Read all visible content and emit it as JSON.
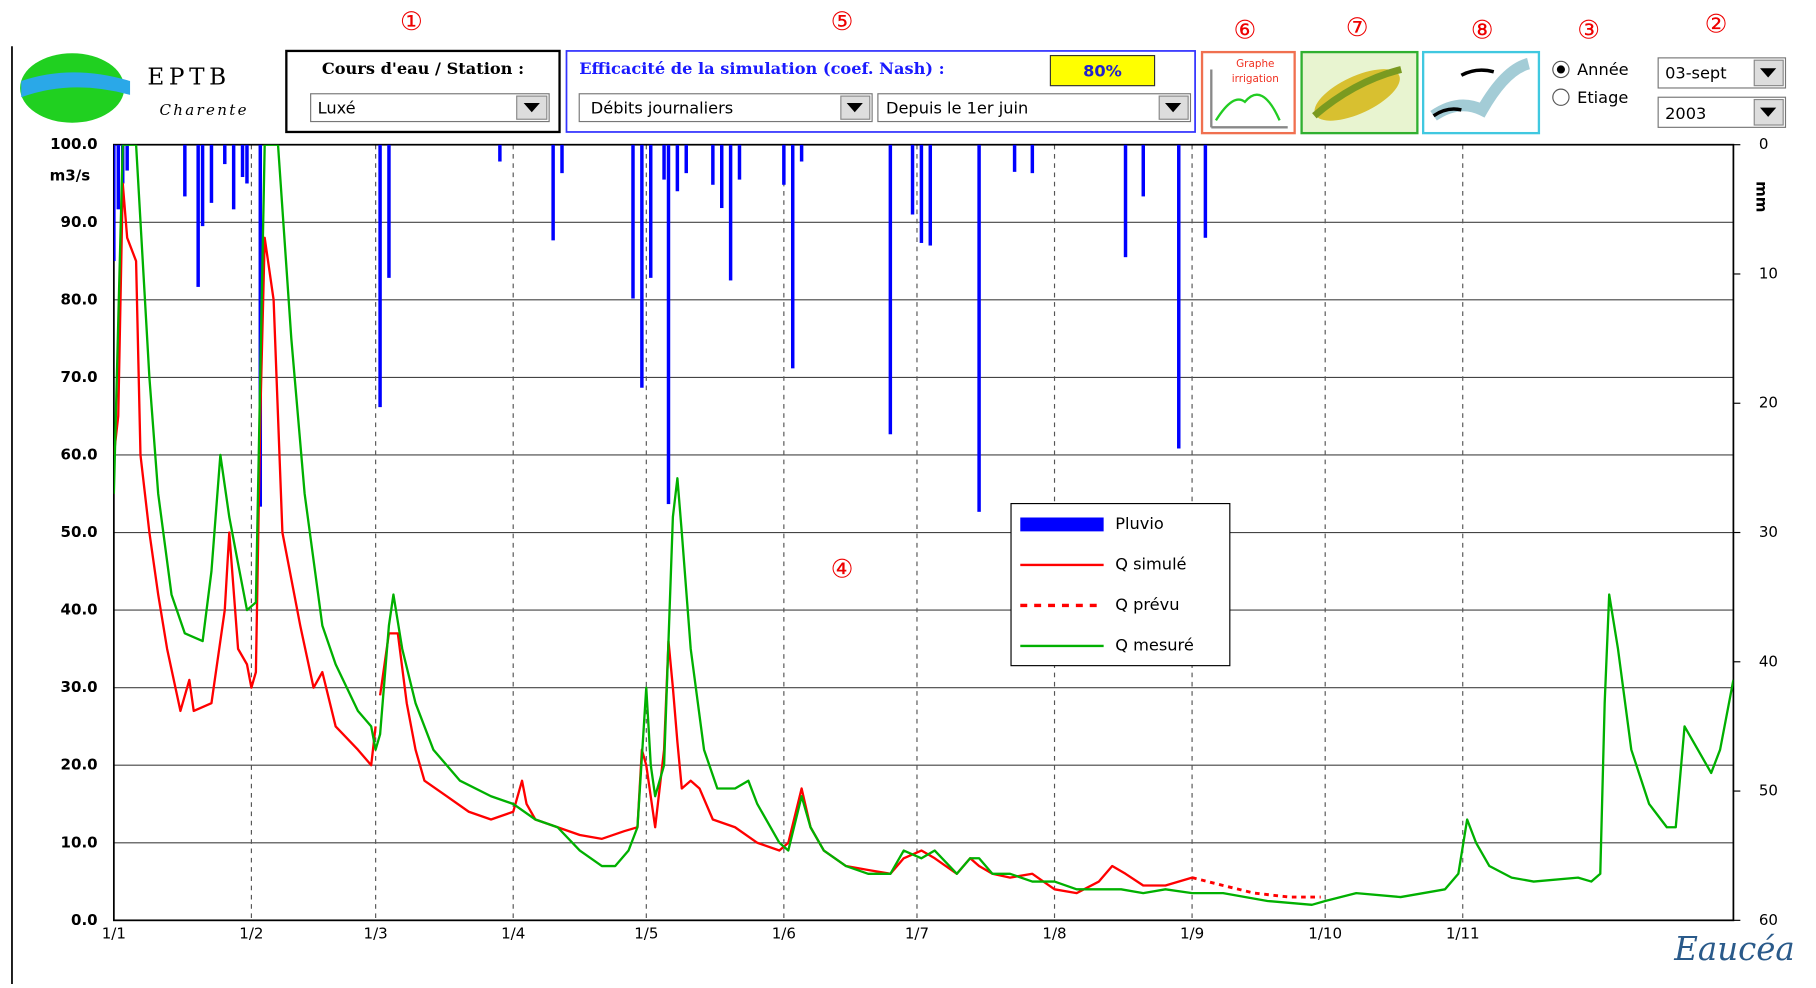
{
  "ui": {
    "logo": {
      "title": "EPTB",
      "subtitle": "Charente"
    },
    "station_label": "Cours d'eau / Station :",
    "station": "Luxé",
    "nash_label": "Efficacité de la simulation (coef. Nash) :",
    "nash": "80%",
    "step": "Débits journaliers",
    "period": "Depuis le 1er juin",
    "irrigation_button": "Graphe irrigation",
    "mode_year": "Année",
    "mode_low": "Etiage",
    "date": "03-sept",
    "year": "2003",
    "brand": "Eaucéa"
  },
  "annotations": [
    {
      "text": "①"
    },
    {
      "text": "⑤"
    },
    {
      "text": "⑥"
    },
    {
      "text": "⑦"
    },
    {
      "text": "⑧"
    },
    {
      "text": "③"
    },
    {
      "text": "②"
    },
    {
      "text": "④"
    }
  ],
  "chart_data": {
    "type": "line",
    "y_label": "m3/s",
    "y2_label": "mm",
    "xlim": [
      0,
      365
    ],
    "xticks": [
      {
        "value": 0,
        "label": "1/1"
      },
      {
        "value": 31,
        "label": "1/2"
      },
      {
        "value": 59,
        "label": "1/3"
      },
      {
        "value": 90,
        "label": "1/4"
      },
      {
        "value": 120,
        "label": "1/5"
      },
      {
        "value": 151,
        "label": "1/6"
      },
      {
        "value": 181,
        "label": "1/7"
      },
      {
        "value": 212,
        "label": "1/8"
      },
      {
        "value": 243,
        "label": "1/9"
      },
      {
        "value": 273,
        "label": "1/10"
      },
      {
        "value": 304,
        "label": "1/11"
      }
    ],
    "ylim": [
      0,
      100
    ],
    "yticks": [
      {
        "value": 0,
        "label": "0.0"
      },
      {
        "value": 10,
        "label": "10.0"
      },
      {
        "value": 20,
        "label": "20.0"
      },
      {
        "value": 30,
        "label": "30.0"
      },
      {
        "value": 40,
        "label": "40.0"
      },
      {
        "value": 50,
        "label": "50.0"
      },
      {
        "value": 60,
        "label": "60.0"
      },
      {
        "value": 70,
        "label": "70.0"
      },
      {
        "value": 80,
        "label": "80.0"
      },
      {
        "value": 90,
        "label": "90.0"
      },
      {
        "value": 100,
        "label": "100.0"
      }
    ],
    "y2lim": [
      60,
      0
    ],
    "y2ticks": [
      0,
      10,
      20,
      30,
      40,
      50,
      60
    ],
    "grid": true,
    "series": [
      {
        "name": "Pluvio",
        "color": "#0000ff",
        "style": "bar",
        "axis": "y2",
        "x": [
          0,
          1,
          2,
          3,
          16,
          19,
          20,
          22,
          25,
          27,
          29,
          30,
          33,
          60,
          62,
          87,
          99,
          101,
          117,
          119,
          121,
          124,
          125,
          127,
          129,
          135,
          137,
          139,
          141,
          151,
          153,
          155,
          175,
          180,
          182,
          184,
          195,
          203,
          207,
          228,
          232,
          240,
          246
        ],
        "values": [
          9,
          5,
          3,
          2,
          4,
          11,
          6.3,
          4.5,
          1.5,
          5,
          2.5,
          3,
          28,
          20.3,
          10.3,
          1.3,
          7.4,
          2.2,
          11.9,
          18.8,
          10.3,
          2.7,
          27.8,
          3.6,
          2.2,
          3.1,
          4.9,
          10.5,
          2.7,
          3.1,
          17.3,
          1.3,
          22.4,
          5.4,
          7.6,
          7.8,
          28.4,
          2.1,
          2.2,
          8.7,
          4,
          23.5,
          7.2
        ]
      },
      {
        "name": "Q simulé",
        "color": "#ff0000",
        "style": "line",
        "x": [
          0,
          1,
          2,
          3,
          5,
          6,
          8,
          10,
          12,
          15,
          17,
          18,
          22,
          25,
          26,
          28,
          30,
          31,
          32,
          33,
          34,
          36,
          38,
          42,
          45,
          47,
          50,
          55,
          58,
          59,
          null,
          60,
          62,
          64,
          66,
          68,
          70,
          75,
          80,
          85,
          90,
          92,
          93,
          95,
          100,
          105,
          110,
          115,
          118,
          119,
          120,
          122,
          124,
          125,
          126,
          127,
          128,
          130,
          132,
          135,
          140,
          145,
          150,
          152,
          155,
          157,
          160,
          165,
          170,
          175,
          178,
          182,
          185,
          190,
          193,
          195,
          198,
          202,
          207,
          212,
          217,
          222,
          225,
          228,
          232,
          237,
          243
        ],
        "values": [
          60,
          65,
          95,
          88,
          85,
          60,
          50,
          42,
          35,
          27,
          31,
          27,
          28,
          40,
          50,
          35,
          33,
          30,
          32,
          65,
          88,
          80,
          50,
          38,
          30,
          32,
          25,
          22,
          20,
          25,
          null,
          29,
          37,
          37,
          28,
          22,
          18,
          16,
          14,
          13,
          14,
          18,
          15,
          13,
          12,
          11,
          10.5,
          11.5,
          12,
          22,
          20,
          12,
          22,
          36,
          30,
          23,
          17,
          18,
          17,
          13,
          12,
          10,
          9,
          10,
          17,
          12,
          9,
          7,
          6.5,
          6,
          8,
          9,
          8,
          6,
          8,
          7,
          6,
          5.5,
          6,
          4,
          3.5,
          5,
          7,
          6,
          4.5,
          4.5,
          5.5
        ]
      },
      {
        "name": "Q prévu",
        "color": "#ff0000",
        "style": "dashed",
        "x": [
          243,
          250,
          257,
          265,
          272
        ],
        "values": [
          5.5,
          4.5,
          3.5,
          3,
          3
        ]
      },
      {
        "name": "Q mesuré",
        "color": "#00b000",
        "style": "line",
        "x": [
          0,
          2,
          5,
          8,
          10,
          13,
          16,
          20,
          22,
          24,
          26,
          28,
          30,
          32,
          34,
          37,
          40,
          43,
          47,
          50,
          55,
          58,
          59,
          60,
          62,
          63,
          65,
          68,
          72,
          78,
          85,
          90,
          95,
          100,
          105,
          110,
          113,
          116,
          118,
          120,
          121,
          122,
          124,
          126,
          127,
          128,
          130,
          133,
          136,
          140,
          143,
          145,
          150,
          152,
          155,
          157,
          160,
          165,
          170,
          175,
          178,
          182,
          185,
          190,
          193,
          195,
          198,
          202,
          207,
          212,
          217,
          222,
          227,
          232,
          237,
          243,
          250,
          260,
          270,
          273,
          280,
          290,
          300,
          303,
          305,
          307,
          310,
          315,
          320,
          330,
          333,
          335,
          336,
          337,
          339,
          342,
          346,
          350,
          352,
          354,
          357,
          360,
          362,
          365
        ],
        "values": [
          55,
          100,
          100,
          70,
          55,
          42,
          37,
          36,
          45,
          60,
          52,
          46,
          40,
          41,
          100,
          100,
          75,
          55,
          38,
          33,
          27,
          25,
          22,
          24,
          38,
          42,
          35,
          28,
          22,
          18,
          16,
          15,
          13,
          12,
          9,
          7,
          7,
          9,
          12,
          30,
          20,
          16,
          20,
          52,
          57,
          50,
          35,
          22,
          17,
          17,
          18,
          15,
          10,
          9,
          16,
          12,
          9,
          7,
          6,
          6,
          9,
          8,
          9,
          6,
          8,
          8,
          6,
          6,
          5,
          5,
          4,
          4,
          4,
          3.5,
          4,
          3.5,
          3.5,
          2.5,
          2,
          2.5,
          3.5,
          3,
          4,
          6,
          13,
          10,
          7,
          5.5,
          5,
          5.5,
          5,
          6,
          28,
          42,
          35,
          22,
          15,
          12,
          12,
          25,
          22,
          19,
          22,
          31
        ]
      }
    ]
  }
}
